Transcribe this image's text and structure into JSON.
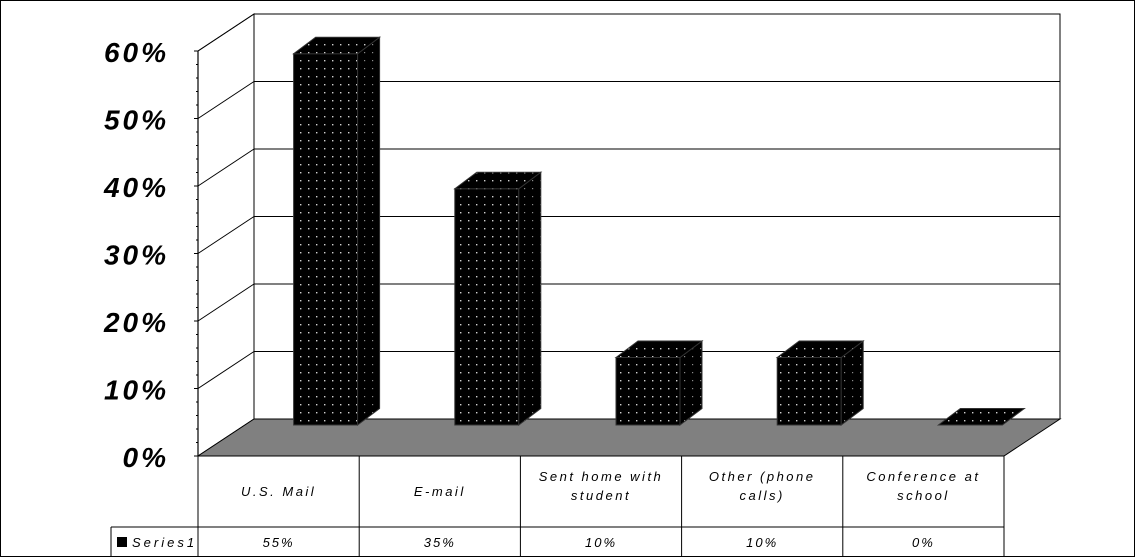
{
  "chart_data": {
    "type": "bar",
    "style": "3d-column-with-data-table",
    "categories": [
      [
        "U.S. Mail"
      ],
      [
        "E-mail"
      ],
      [
        "Sent home with",
        "student"
      ],
      [
        "Other (phone",
        "calls)"
      ],
      [
        "Conference at",
        "school"
      ]
    ],
    "series": [
      {
        "name": "Series1",
        "values": [
          55,
          35,
          10,
          10,
          0
        ],
        "value_labels": [
          "55%",
          "35%",
          "10%",
          "10%",
          "0%"
        ]
      }
    ],
    "yticks": [
      "0%",
      "10%",
      "20%",
      "30%",
      "40%",
      "50%",
      "60%"
    ],
    "ylim": [
      0,
      60
    ],
    "grid": true,
    "legend": "data-table",
    "colors": {
      "bar": "#000000",
      "bar_dots": "#cfcfcf",
      "floor": "#808080",
      "grid": "#000000"
    }
  }
}
